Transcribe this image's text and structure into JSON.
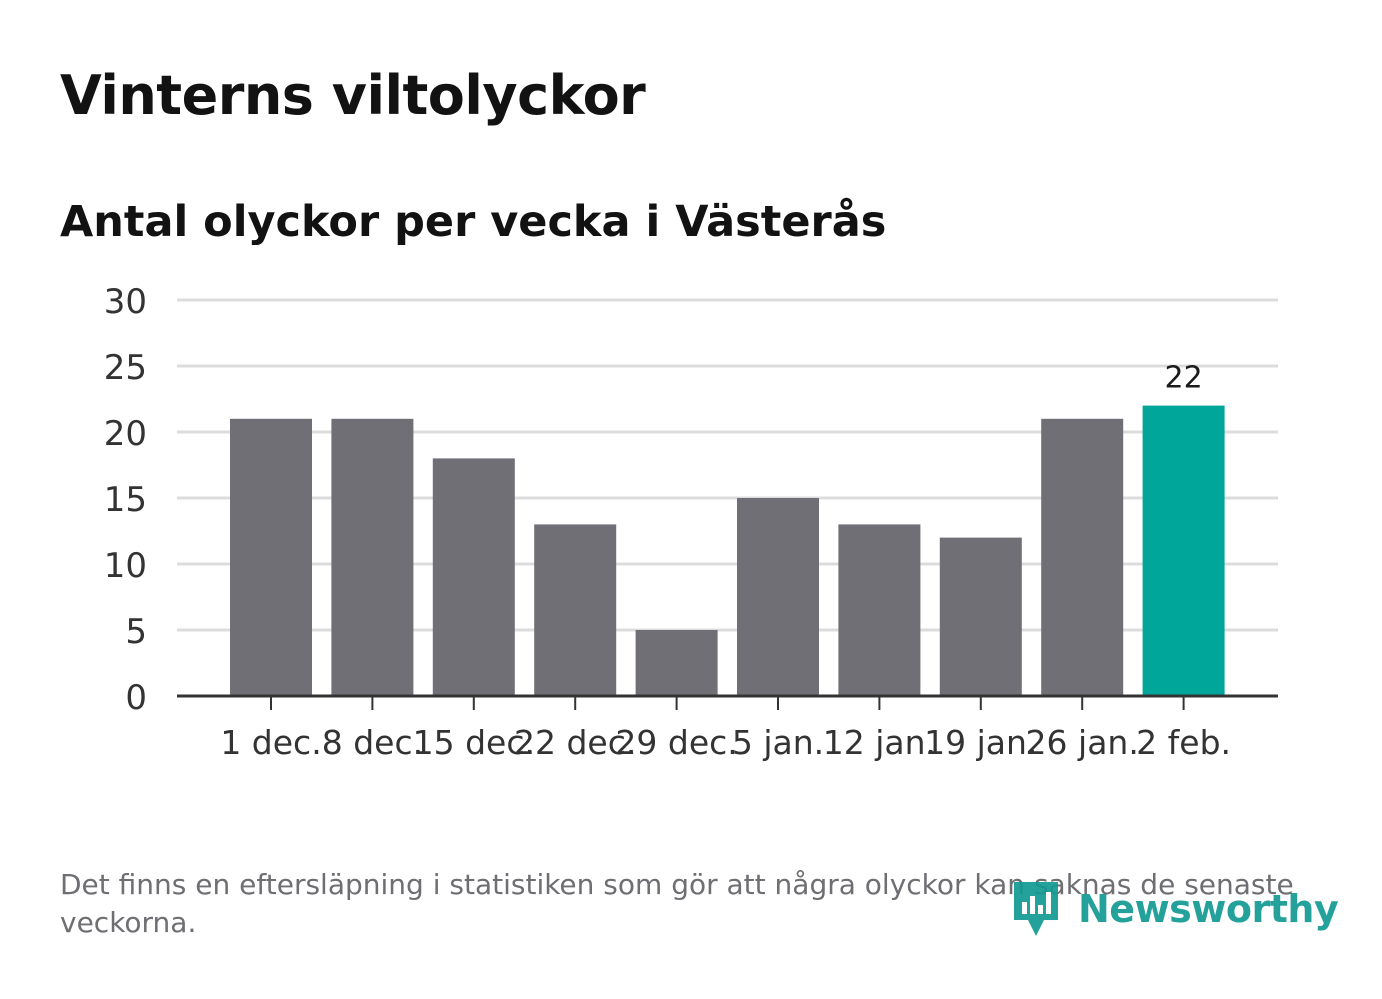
{
  "title": "Vinterns viltolyckor",
  "subtitle": "Antal olyckor per vecka i Västerås",
  "footnote": "Det finns en eftersläpning i statistiken som gör att några olyckor kan saknas de senaste veckorna.",
  "logo": {
    "text": "Newsworthy",
    "icon": "newsworthy-bar-chart-icon"
  },
  "colors": {
    "bar": "#706f76",
    "highlight": "#00a69a",
    "grid": "#dcdcdc",
    "axis": "#333333",
    "tick_text": "#333333"
  },
  "chart_data": {
    "type": "bar",
    "title": "",
    "xlabel": "",
    "ylabel": "",
    "categories": [
      "1 dec.",
      "8 dec.",
      "15 dec.",
      "22 dec.",
      "29 dec.",
      "5 jan.",
      "12 jan.",
      "19 jan.",
      "26 jan.",
      "2 feb."
    ],
    "values": [
      21,
      21,
      18,
      13,
      5,
      15,
      13,
      12,
      21,
      22
    ],
    "highlight_index": 9,
    "data_labels": [
      {
        "index": 9,
        "text": "22"
      }
    ],
    "ylim": [
      0,
      30
    ],
    "yticks": [
      0,
      5,
      10,
      15,
      20,
      25,
      30
    ],
    "grid": true,
    "legend": "none"
  }
}
